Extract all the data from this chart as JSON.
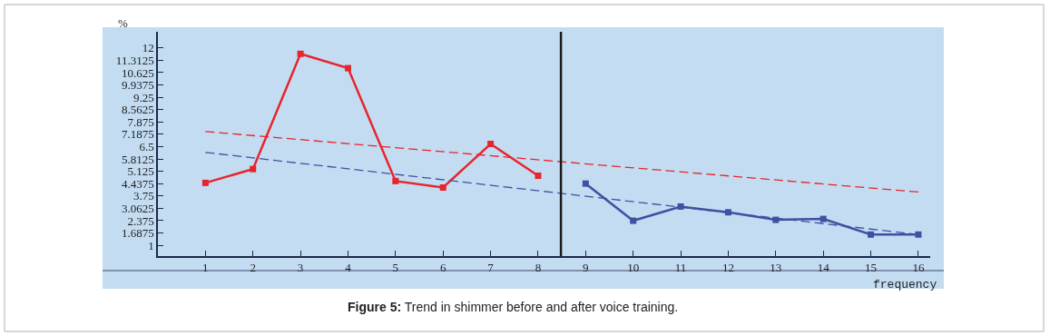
{
  "chart_data": {
    "type": "line",
    "xlabel": "frequency",
    "ylabel": "%",
    "annotations": [
      "Figure 5: Trend in shimmer before and after voice training."
    ],
    "xlim": [
      0,
      16.25
    ],
    "xticks": [
      1,
      2,
      3,
      4,
      5,
      6,
      7,
      8,
      9,
      10,
      11,
      12,
      13,
      14,
      15,
      16
    ],
    "ylim": [
      0.4,
      12.9
    ],
    "yticks": [
      1,
      1.6875,
      2.375,
      3.0625,
      3.75,
      4.4375,
      5.125,
      5.8125,
      6.5,
      7.1875,
      7.875,
      8.5625,
      9.25,
      9.9375,
      10.625,
      11.3125,
      12
    ],
    "grid": false,
    "marker": "square",
    "line_style": "solid",
    "series": [
      {
        "color": "#e8242c",
        "x": [
          1,
          2,
          3,
          4,
          5,
          6,
          7,
          8
        ],
        "values": [
          4.48,
          5.25,
          11.67,
          10.87,
          4.58,
          4.22,
          6.65,
          4.88
        ]
      },
      {
        "color": "#3f51a3",
        "x": [
          9,
          10,
          11,
          12,
          13,
          14,
          15,
          16
        ],
        "values": [
          4.44,
          2.37,
          3.16,
          2.84,
          2.42,
          2.47,
          1.6,
          1.6
        ]
      },
      {
        "color": "#e8242c",
        "x": [
          1,
          16
        ],
        "values": [
          7.34,
          3.97
        ],
        "marker": "none",
        "line_style": "dashed"
      },
      {
        "color": "#3f51a3",
        "x": [
          1,
          16
        ],
        "values": [
          6.18,
          1.6
        ],
        "marker": "none",
        "line_style": "dashed"
      }
    ],
    "ref_lines": [
      {
        "axis": "x",
        "value": 8.48,
        "label": null,
        "color": "#1a1a1a"
      }
    ]
  }
}
